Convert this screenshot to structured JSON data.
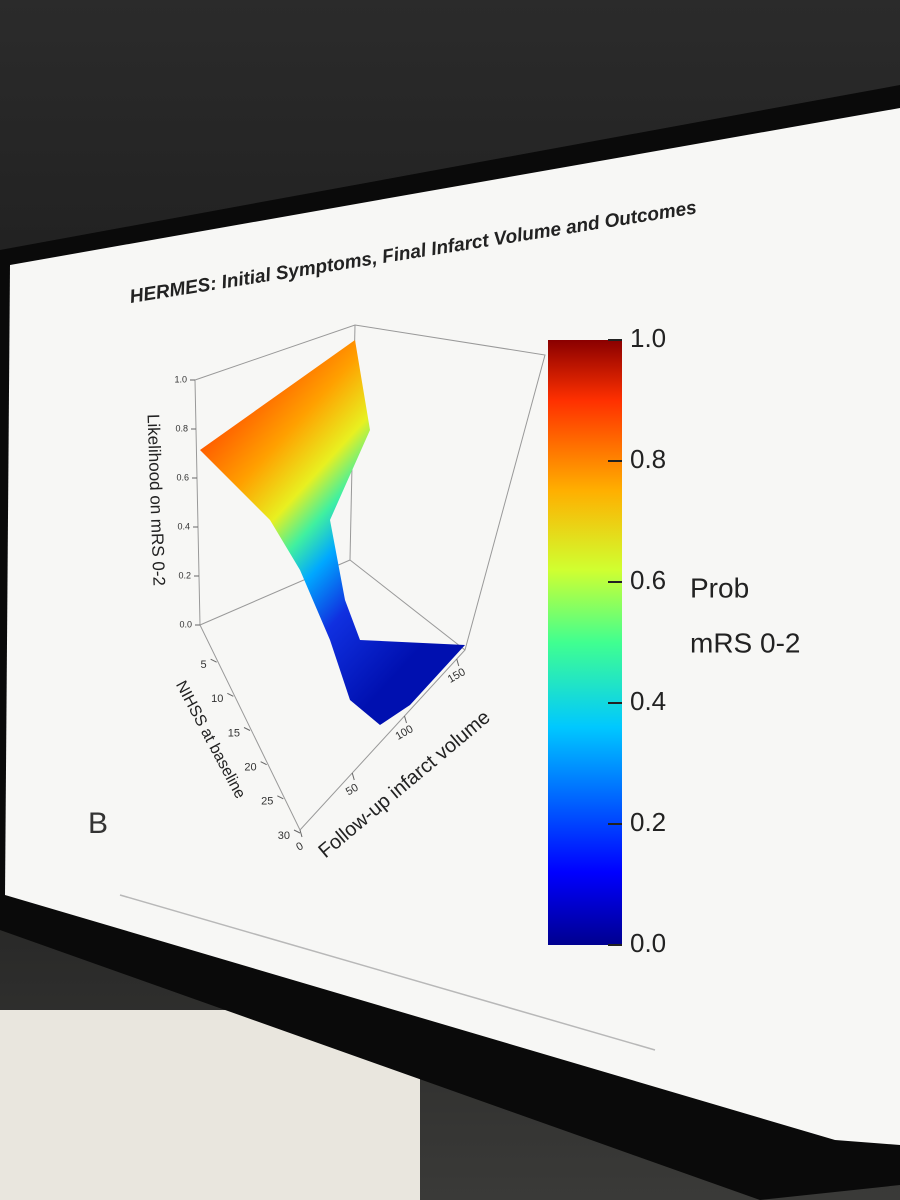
{
  "slide": {
    "title": "HERMES: Initial Symptoms, Final Infarct Volume and Outcomes",
    "panel_label": "B"
  },
  "plot": {
    "z_label": "Likelihood on mRS 0-2",
    "z_ticks": [
      {
        "value": 0,
        "label": "0.0"
      },
      {
        "value": 0.2,
        "label": "0.2"
      },
      {
        "value": 0.4,
        "label": "0.4"
      },
      {
        "value": 0.6,
        "label": "0.6"
      },
      {
        "value": 0.8,
        "label": "0.8"
      },
      {
        "value": 1,
        "label": "1.0"
      }
    ],
    "y_label": "NIHSS at baseline",
    "y_ticks": [
      5,
      10,
      15,
      20,
      25,
      30
    ],
    "x_label": "Follow-up infarct volume",
    "x_ticks": [
      0,
      50,
      100,
      150
    ]
  },
  "colorbar": {
    "label_line1": "Prob",
    "label_line2": "mRS 0-2",
    "ticks": [
      {
        "value": 0,
        "label": "0.0"
      },
      {
        "value": 0.2,
        "label": "0.2"
      },
      {
        "value": 0.4,
        "label": "0.4"
      },
      {
        "value": 0.6,
        "label": "0.6"
      },
      {
        "value": 0.8,
        "label": "0.8"
      },
      {
        "value": 1,
        "label": "1.0"
      }
    ]
  }
}
